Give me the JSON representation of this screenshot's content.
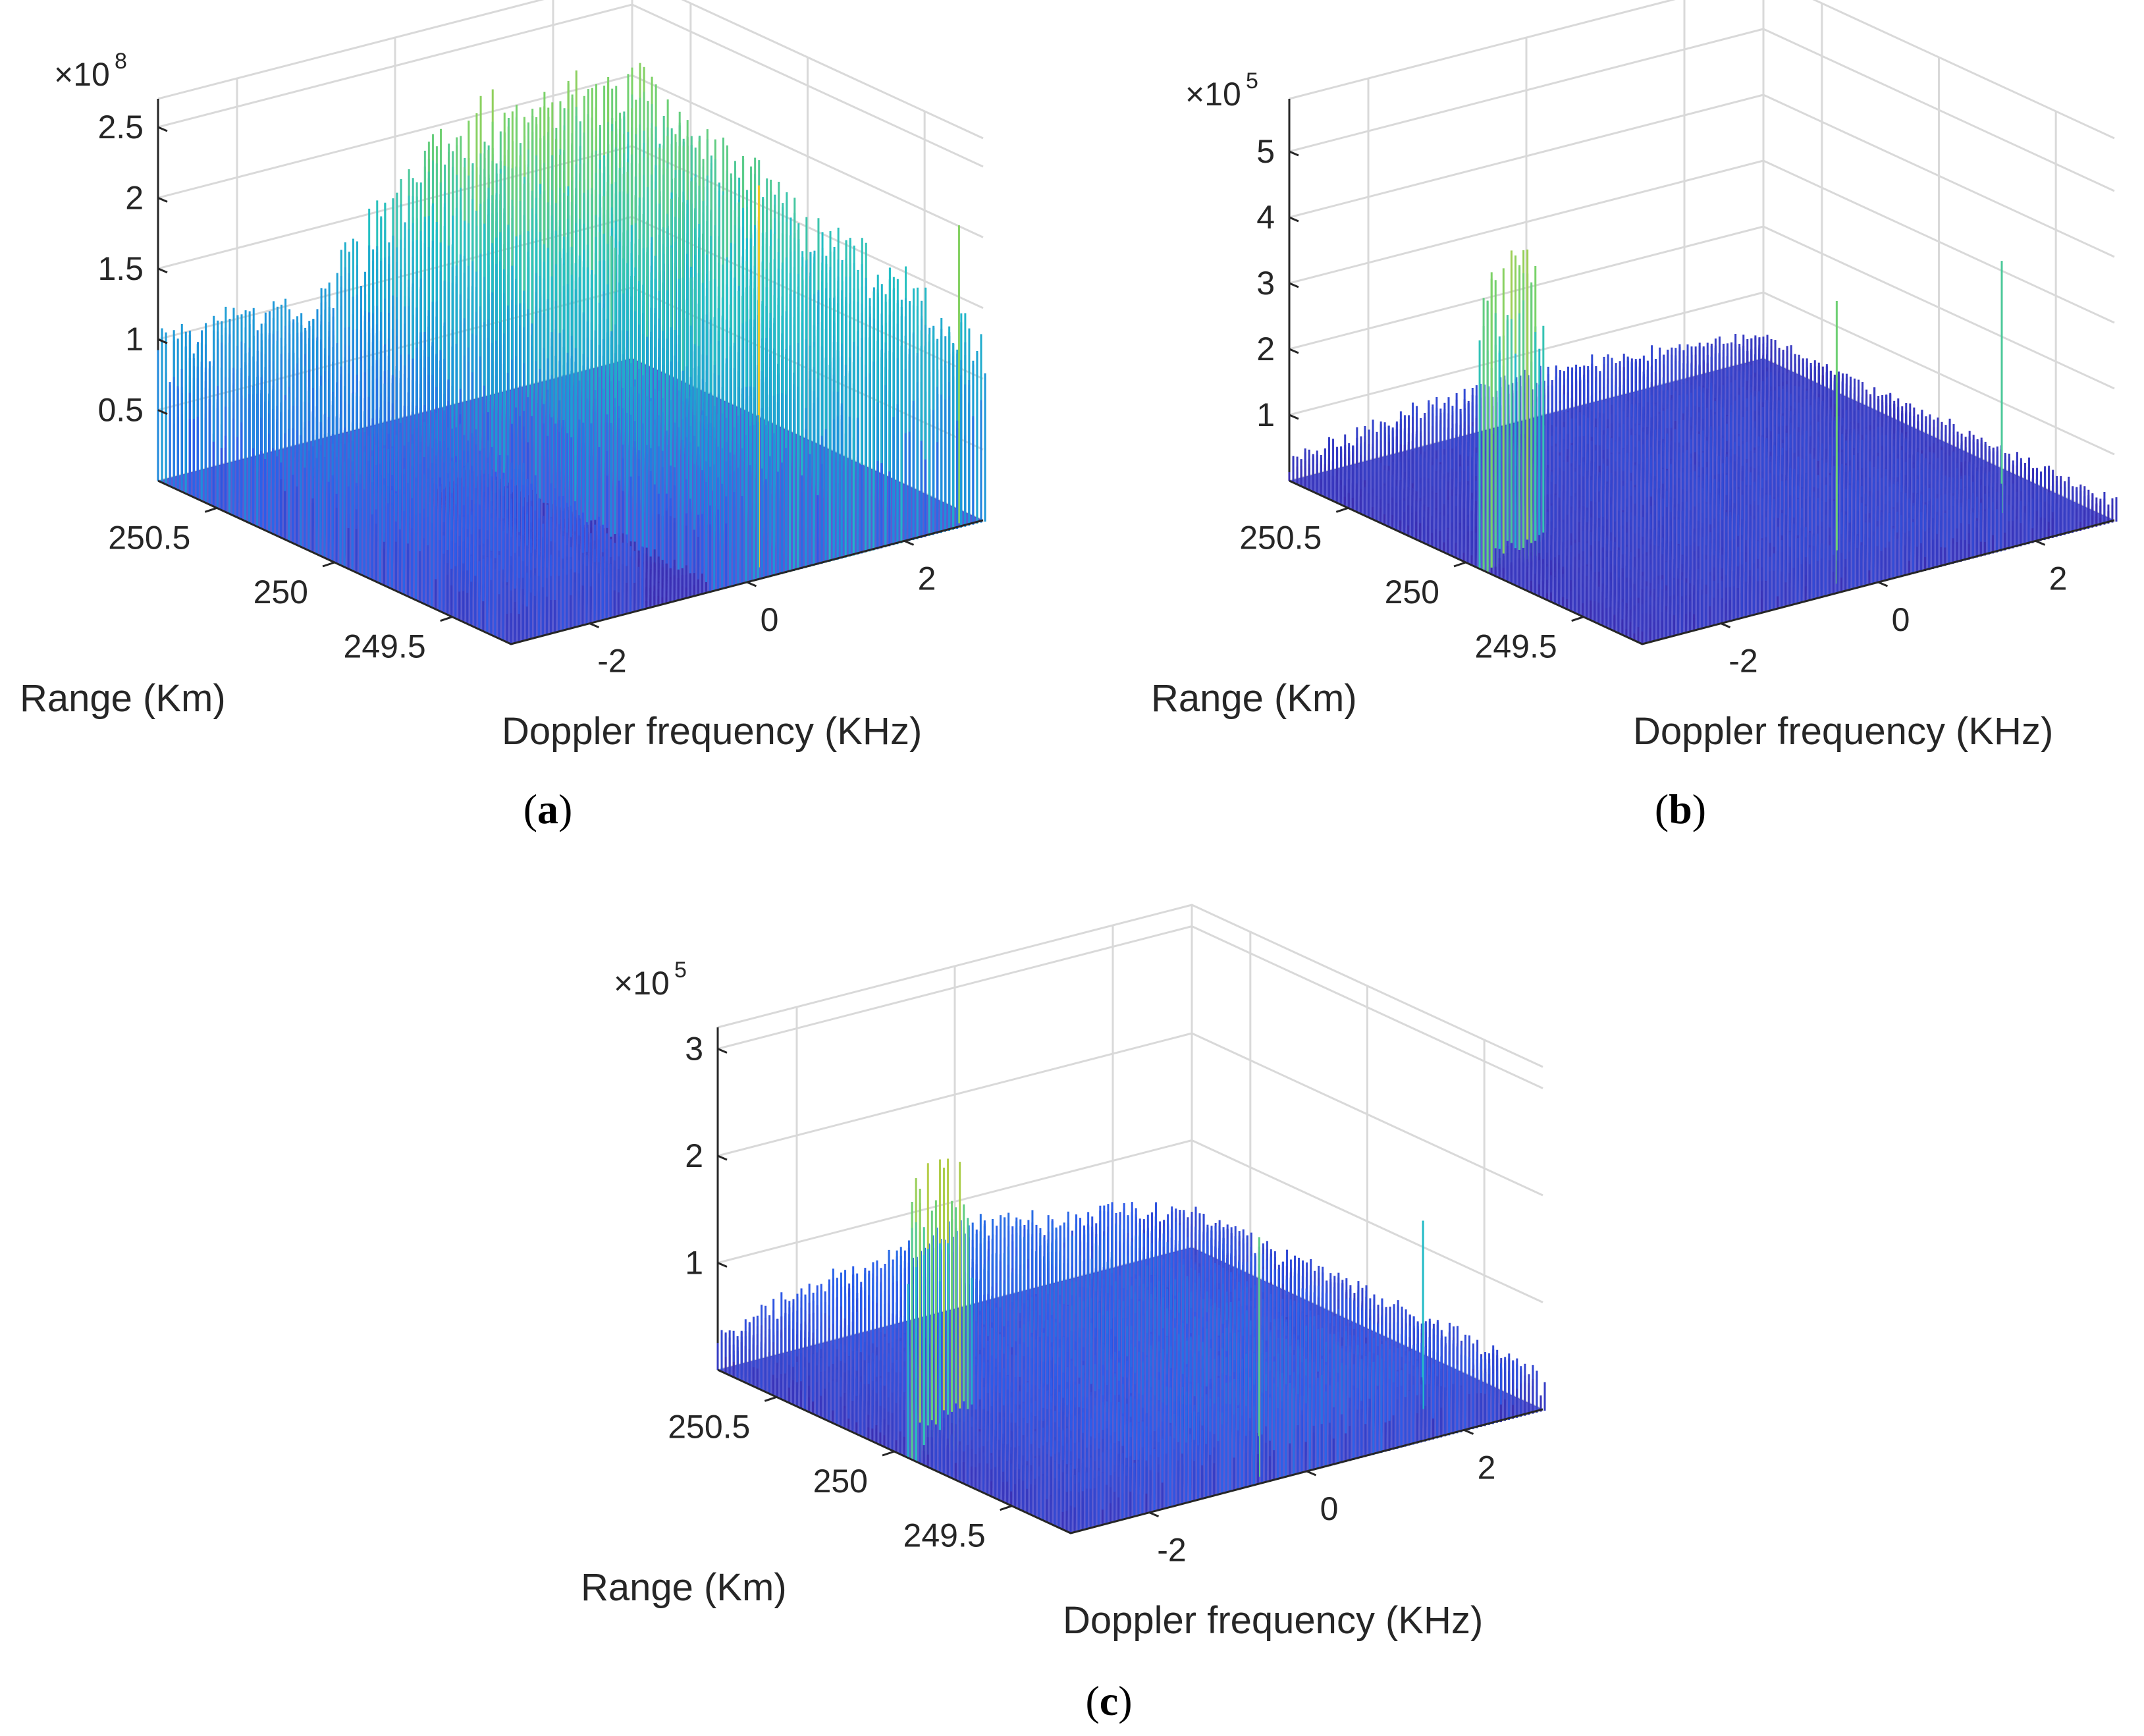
{
  "figure": {
    "colormap": [
      "#3d26a8",
      "#2d5cea",
      "#1e96d9",
      "#25c0c4",
      "#79d26a",
      "#f5c824"
    ],
    "base_color": "#3f3fc8"
  },
  "chart_data": [
    {
      "id": "a",
      "type": "surface3d",
      "caption": "a",
      "title": "",
      "xlabel": "Range (Km)",
      "ylabel": "Doppler frequency (KHz)",
      "zlabel": "",
      "z_exponent_base": "×10",
      "z_exponent": "8",
      "x_ticks": [
        "250.5",
        "250",
        "249.5"
      ],
      "y_ticks": [
        "-2",
        "0",
        "2"
      ],
      "z_ticks": [
        "0.5",
        "1",
        "1.5",
        "2",
        "2.5"
      ],
      "x_range": [
        249.25,
        250.75
      ],
      "y_range": [
        -3,
        3
      ],
      "z_range": [
        0,
        2.7
      ],
      "description_values": {
        "left_region_peak": 1.2,
        "right_region_peak": 2.1,
        "max_spike": 2.7,
        "max_spike_location": {
          "range": 250.7,
          "doppler": 0.4
        }
      }
    },
    {
      "id": "b",
      "type": "surface3d",
      "caption": "b",
      "title": "",
      "xlabel": "Range (Km)",
      "ylabel": "Doppler frequency (KHz)",
      "zlabel": "",
      "z_exponent_base": "×10",
      "z_exponent": "5",
      "x_ticks": [
        "250.5",
        "250",
        "249.5"
      ],
      "y_ticks": [
        "-2",
        "0",
        "2"
      ],
      "z_ticks": [
        "1",
        "2",
        "3",
        "4",
        "5"
      ],
      "x_range": [
        249.25,
        250.75
      ],
      "y_range": [
        -3,
        3
      ],
      "z_range": [
        0,
        5.8
      ],
      "description_values": {
        "noise_floor": 1.0,
        "target_peak": 4.7,
        "target_location": {
          "range": 250.0,
          "doppler": -2.6
        }
      }
    },
    {
      "id": "c",
      "type": "surface3d",
      "caption": "c",
      "title": "",
      "xlabel": "Range (Km)",
      "ylabel": "Doppler frequency (KHz)",
      "zlabel": "",
      "z_exponent_base": "×10",
      "z_exponent": "5",
      "x_ticks": [
        "250.5",
        "250",
        "249.5"
      ],
      "y_ticks": [
        "-2",
        "0",
        "2"
      ],
      "z_ticks": [
        "1",
        "2",
        "3"
      ],
      "x_range": [
        249.25,
        250.75
      ],
      "y_range": [
        -3,
        3
      ],
      "z_range": [
        0,
        3.2
      ],
      "description_values": {
        "noise_floor": 1.0,
        "target_peak": 2.7,
        "target_location": {
          "range": 250.0,
          "doppler": -2.6
        }
      }
    }
  ]
}
